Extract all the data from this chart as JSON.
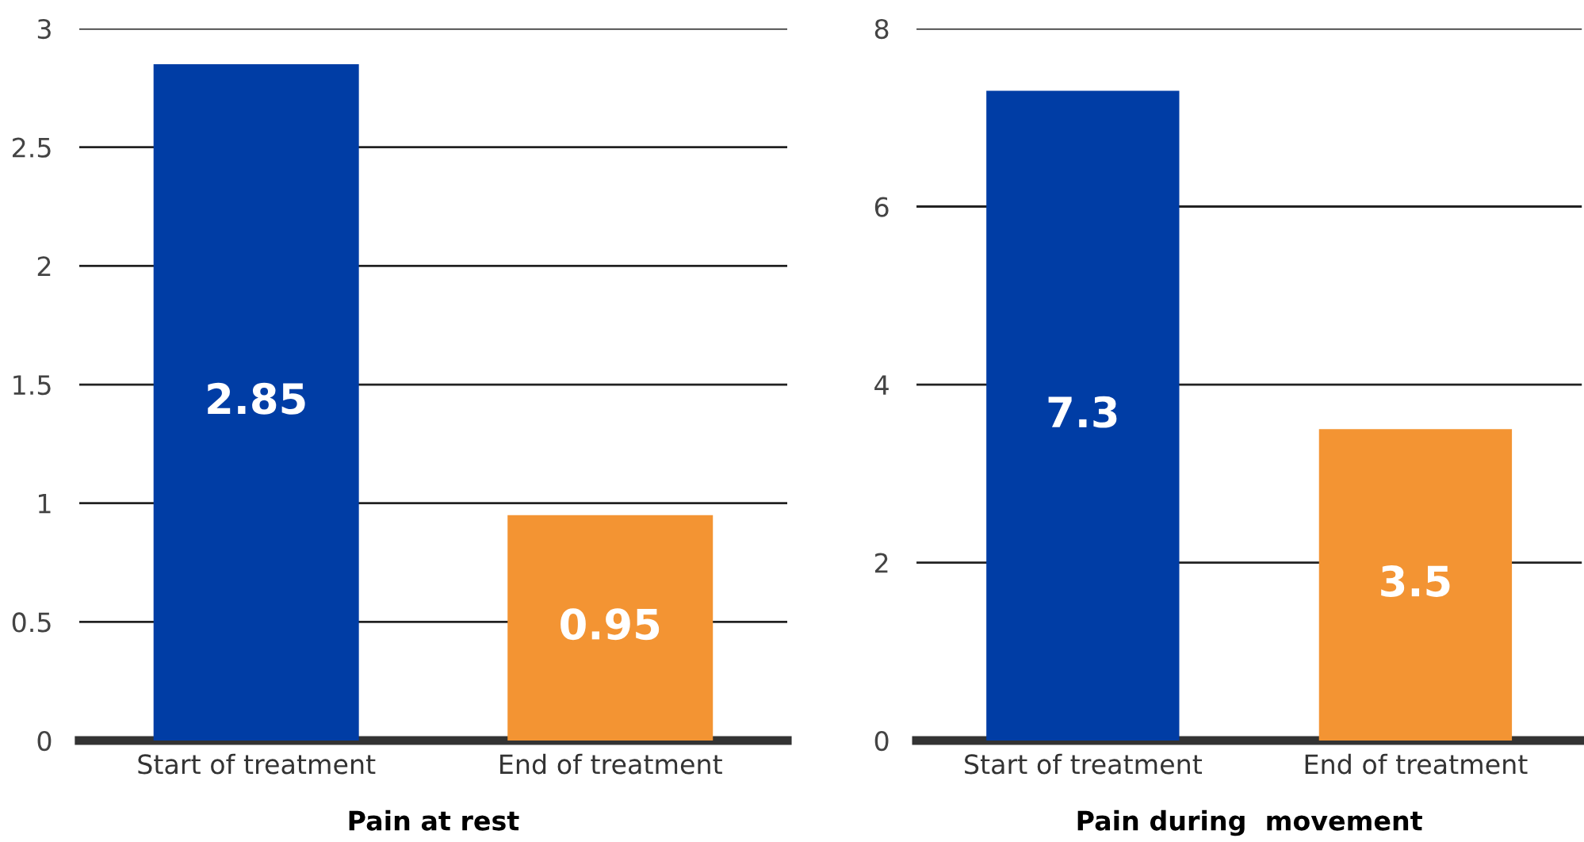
{
  "chart_data": [
    {
      "type": "bar",
      "xlabel": "Pain at rest",
      "categories": [
        "Start of treatment",
        "End of treatment"
      ],
      "values": [
        2.85,
        0.95
      ],
      "colors": [
        "#003da5",
        "#f39433"
      ],
      "ylim": [
        0,
        3
      ],
      "yticks": [
        0,
        0.5,
        1,
        1.5,
        2,
        2.5,
        3
      ],
      "grid": "y",
      "data_labels": true
    },
    {
      "type": "bar",
      "xlabel": "Pain during  movement",
      "categories": [
        "Start of treatment",
        "End of treatment"
      ],
      "values": [
        7.3,
        3.5
      ],
      "colors": [
        "#003da5",
        "#f39433"
      ],
      "ylim": [
        0,
        8
      ],
      "yticks": [
        0,
        2,
        4,
        6,
        8
      ],
      "grid": "y",
      "data_labels": true
    }
  ]
}
